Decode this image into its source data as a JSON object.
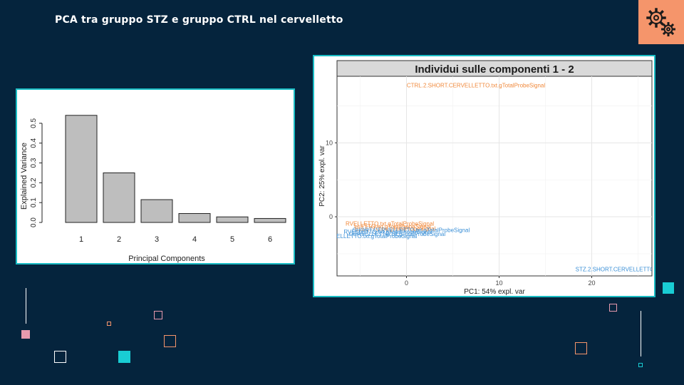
{
  "slide": {
    "title": "PCA tra gruppo STZ e gruppo CTRL nel cervelletto",
    "icon": "gears-icon",
    "accent_color": "#f5956b",
    "frame_color": "#19bcc4",
    "background_color": "#05243d"
  },
  "chart_data": [
    {
      "type": "bar",
      "title": "",
      "xlabel": "Principal Components",
      "ylabel": "Explained Variance",
      "categories": [
        "1",
        "2",
        "3",
        "4",
        "5",
        "6"
      ],
      "values": [
        0.54,
        0.25,
        0.115,
        0.045,
        0.028,
        0.02
      ],
      "ylim": [
        0,
        0.55
      ],
      "yticks": [
        "0.0",
        "0.1",
        "0.2",
        "0.3",
        "0.4",
        "0.5"
      ],
      "bar_color": "#bebebe",
      "grid": false
    },
    {
      "type": "scatter",
      "title": "Individui sulle componenti 1 - 2",
      "xlabel": "PC1: 54% expl. var",
      "ylabel": "PC2: 25% expl. var",
      "xlim": [
        -7.5,
        26.5
      ],
      "ylim": [
        -8,
        19
      ],
      "xticks": [
        "0",
        "10",
        "20"
      ],
      "yticks": [
        "0",
        "10"
      ],
      "grid": true,
      "points": [
        {
          "label": "CTRL.2.SHORT.CERVELLETTO.txt.gTotalProbeSignal",
          "x": 7.5,
          "y": 17.8,
          "color": "#f0883a"
        },
        {
          "label": "RVELLETTO.txt.gTotalProbeSignal",
          "x": -1.8,
          "y": -0.9,
          "color": "#f0883a"
        },
        {
          "label": "LLETTO.txt.gTotalProbeSignal",
          "x": -1.5,
          "y": -1.3,
          "color": "#f0883a"
        },
        {
          "label": "ELLETTO.txt.gTotalProbeSignal",
          "x": -1.2,
          "y": -1.6,
          "color": "#f0883a"
        },
        {
          "label": "SHORT.CERVELLETTO.txt.gTotalProbeSignal",
          "x": 0.5,
          "y": -1.8,
          "color": "#3a8fd6"
        },
        {
          "label": "RVELLETTO.txt.gTotalProbeSignal",
          "x": -2.0,
          "y": -2.0,
          "color": "#3a8fd6"
        },
        {
          "label": "CERVELLETTO.txt.gTotalProbeSignal",
          "x": -1.0,
          "y": -2.3,
          "color": "#3a8fd6"
        },
        {
          "label": "ELLETTO.txt.gTotalProbeSignal",
          "x": -3.2,
          "y": -2.6,
          "color": "#3a8fd6"
        },
        {
          "label": "STZ.2.SHORT.CERVELLETTO",
          "x": 22.5,
          "y": -7.1,
          "color": "#3a8fd6"
        }
      ]
    }
  ]
}
